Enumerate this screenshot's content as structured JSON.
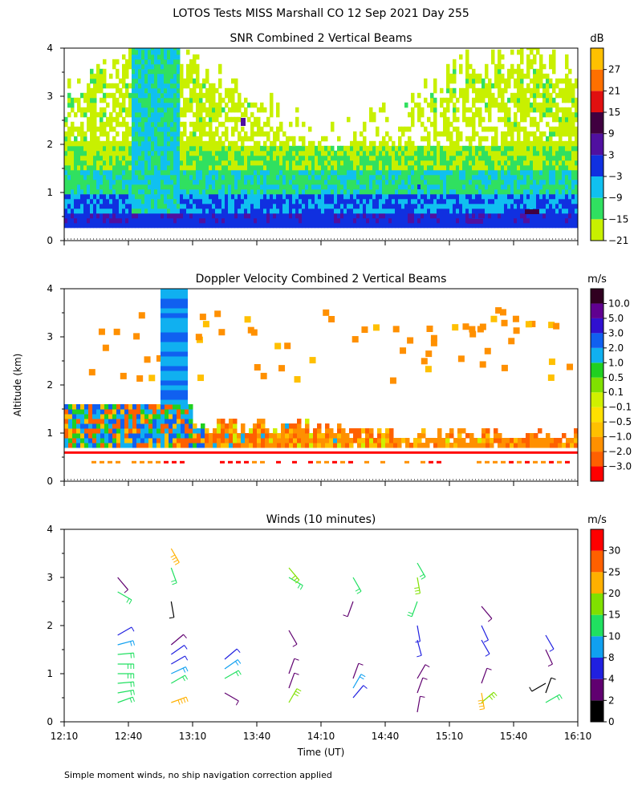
{
  "figure": {
    "title": "LOTOS Tests MISS Marshall CO  12 Sep 2021 Day 255",
    "shared_ylabel": "Altitude (km)",
    "shared_xlabel": "Time (UT)",
    "x_tick_labels": [
      "12:10",
      "12:40",
      "13:10",
      "13:40",
      "14:10",
      "14:40",
      "15:10",
      "15:40",
      "16:10"
    ],
    "y_tick_labels": [
      "0",
      "1",
      "2",
      "3",
      "4"
    ],
    "footnote": "Simple moment winds, no ship navigation correction applied"
  },
  "colors": {
    "snr_scale": [
      "#c8f000",
      "#30e060",
      "#10c0f0",
      "#1030e0",
      "#5010a0",
      "#400040",
      "#e01010",
      "#ff7000",
      "#ffc000"
    ],
    "vel_scale": [
      "#ff0000",
      "#ff6000",
      "#ff9000",
      "#ffc000",
      "#ffe000",
      "#d0f000",
      "#80e000",
      "#20d020",
      "#10b0f0",
      "#1060f0",
      "#3010d0",
      "#600090",
      "#300020"
    ],
    "wind_scale": [
      "#000000",
      "#600070",
      "#2020e0",
      "#10a0f0",
      "#20e060",
      "#80e000",
      "#ffb000",
      "#ff6000",
      "#ff0000"
    ]
  },
  "chart_data": [
    {
      "type": "heatmap",
      "title": "SNR Combined 2 Vertical Beams",
      "xlabel": "Time (UT)",
      "ylabel": "Altitude (km)",
      "xlim": [
        "12:10",
        "16:10"
      ],
      "ylim": [
        0,
        4
      ],
      "colorbar_units": "dB",
      "colorbar_labels": [
        "27",
        "21",
        "15",
        "9",
        "3",
        "−3",
        "−9",
        "−15",
        "−21"
      ],
      "colorbar_values": [
        -21,
        -15,
        -9,
        -3,
        3,
        9,
        15,
        21,
        27
      ],
      "profile": [
        {
          "alt_km": 0.3,
          "snr_db": 3
        },
        {
          "alt_km": 0.5,
          "snr_db": 0
        },
        {
          "alt_km": 1.0,
          "snr_db": -9
        },
        {
          "alt_km": 1.5,
          "snr_db": -15
        },
        {
          "alt_km": 2.0,
          "snr_db": -18
        },
        {
          "alt_km": 3.0,
          "snr_db": -18
        }
      ]
    },
    {
      "type": "heatmap",
      "title": "Doppler Velocity Combined 2 Vertical Beams",
      "xlabel": "Time (UT)",
      "ylabel": "Altitude (km)",
      "xlim": [
        "12:10",
        "16:10"
      ],
      "ylim": [
        0,
        4
      ],
      "colorbar_units": "m/s",
      "colorbar_labels": [
        "10.0",
        "5.0",
        "3.0",
        "2.0",
        "1.0",
        "0.5",
        "0.1",
        "−0.1",
        "−0.5",
        "−1.0",
        "−2.0",
        "−3.0"
      ],
      "colorbar_values": [
        -3.0,
        -2.0,
        -1.0,
        -0.5,
        -0.1,
        0.1,
        0.5,
        1.0,
        2.0,
        3.0,
        5.0,
        10.0
      ]
    },
    {
      "type": "scatter",
      "title": "Winds (10 minutes)",
      "xlabel": "Time (UT)",
      "ylabel": "Altitude (km)",
      "xlim": [
        "12:10",
        "16:10"
      ],
      "ylim": [
        0,
        4
      ],
      "colorbar_units": "m/s",
      "colorbar_labels": [
        "30",
        "25",
        "20",
        "15",
        "10",
        "8",
        "4",
        "2",
        "0"
      ],
      "colorbar_values": [
        0,
        2,
        4,
        8,
        10,
        15,
        20,
        25,
        30
      ],
      "profiles": [
        {
          "time": "12:35",
          "samples": [
            {
              "alt": 0.4,
              "speed": 10,
              "dir": 250
            },
            {
              "alt": 0.6,
              "speed": 12,
              "dir": 260
            },
            {
              "alt": 0.8,
              "speed": 12,
              "dir": 265
            },
            {
              "alt": 1.0,
              "speed": 13,
              "dir": 270
            },
            {
              "alt": 1.2,
              "speed": 13,
              "dir": 270
            },
            {
              "alt": 1.4,
              "speed": 12,
              "dir": 265
            },
            {
              "alt": 1.6,
              "speed": 8,
              "dir": 255
            },
            {
              "alt": 1.8,
              "speed": 4,
              "dir": 240
            },
            {
              "alt": 2.7,
              "speed": 10,
              "dir": 300
            },
            {
              "alt": 3.0,
              "speed": 3,
              "dir": 320
            }
          ]
        },
        {
          "time": "13:00",
          "samples": [
            {
              "alt": 0.4,
              "speed": 22,
              "dir": 250
            },
            {
              "alt": 0.8,
              "speed": 10,
              "dir": 240
            },
            {
              "alt": 1.0,
              "speed": 9,
              "dir": 245
            },
            {
              "alt": 1.2,
              "speed": 7,
              "dir": 240
            },
            {
              "alt": 1.4,
              "speed": 4,
              "dir": 235
            },
            {
              "alt": 1.6,
              "speed": 3,
              "dir": 230
            },
            {
              "alt": 2.5,
              "speed": 1,
              "dir": 350
            },
            {
              "alt": 3.2,
              "speed": 10,
              "dir": 340
            },
            {
              "alt": 3.6,
              "speed": 20,
              "dir": 330
            }
          ]
        },
        {
          "time": "13:25",
          "samples": [
            {
              "alt": 0.6,
              "speed": 3,
              "dir": 300
            },
            {
              "alt": 0.9,
              "speed": 10,
              "dir": 240
            },
            {
              "alt": 1.1,
              "speed": 9,
              "dir": 235
            },
            {
              "alt": 1.3,
              "speed": 5,
              "dir": 230
            }
          ]
        },
        {
          "time": "13:55",
          "samples": [
            {
              "alt": 0.4,
              "speed": 15,
              "dir": 210
            },
            {
              "alt": 0.7,
              "speed": 3,
              "dir": 200
            },
            {
              "alt": 1.0,
              "speed": 2,
              "dir": 200
            },
            {
              "alt": 1.9,
              "speed": 3,
              "dir": 330
            },
            {
              "alt": 3.0,
              "speed": 12,
              "dir": 300
            },
            {
              "alt": 3.2,
              "speed": 15,
              "dir": 320
            }
          ]
        },
        {
          "time": "14:25",
          "samples": [
            {
              "alt": 0.5,
              "speed": 4,
              "dir": 220
            },
            {
              "alt": 0.7,
              "speed": 9,
              "dir": 210
            },
            {
              "alt": 0.9,
              "speed": 2,
              "dir": 200
            },
            {
              "alt": 2.5,
              "speed": 3,
              "dir": 20
            },
            {
              "alt": 3.0,
              "speed": 10,
              "dir": 330
            }
          ]
        },
        {
          "time": "14:55",
          "samples": [
            {
              "alt": 0.2,
              "speed": 3,
              "dir": 190
            },
            {
              "alt": 0.6,
              "speed": 3,
              "dir": 200
            },
            {
              "alt": 0.9,
              "speed": 2,
              "dir": 210
            },
            {
              "alt": 1.7,
              "speed": 4,
              "dir": 345
            },
            {
              "alt": 2.0,
              "speed": 4,
              "dir": 350
            },
            {
              "alt": 2.5,
              "speed": 10,
              "dir": 20
            },
            {
              "alt": 3.0,
              "speed": 15,
              "dir": 350
            },
            {
              "alt": 3.3,
              "speed": 12,
              "dir": 330
            }
          ]
        },
        {
          "time": "15:25",
          "samples": [
            {
              "alt": 0.4,
              "speed": 15,
              "dir": 230
            },
            {
              "alt": 0.6,
              "speed": 22,
              "dir": 350
            },
            {
              "alt": 0.8,
              "speed": 2,
              "dir": 200
            },
            {
              "alt": 1.7,
              "speed": 4,
              "dir": 330
            },
            {
              "alt": 2.0,
              "speed": 4,
              "dir": 335
            },
            {
              "alt": 2.4,
              "speed": 3,
              "dir": 320
            }
          ]
        },
        {
          "time": "15:55",
          "samples": [
            {
              "alt": 0.4,
              "speed": 10,
              "dir": 240
            },
            {
              "alt": 0.6,
              "speed": 1,
              "dir": 200
            },
            {
              "alt": 0.8,
              "speed": 1,
              "dir": 60
            },
            {
              "alt": 1.5,
              "speed": 3,
              "dir": 335
            },
            {
              "alt": 1.8,
              "speed": 4,
              "dir": 330
            }
          ]
        }
      ]
    }
  ]
}
